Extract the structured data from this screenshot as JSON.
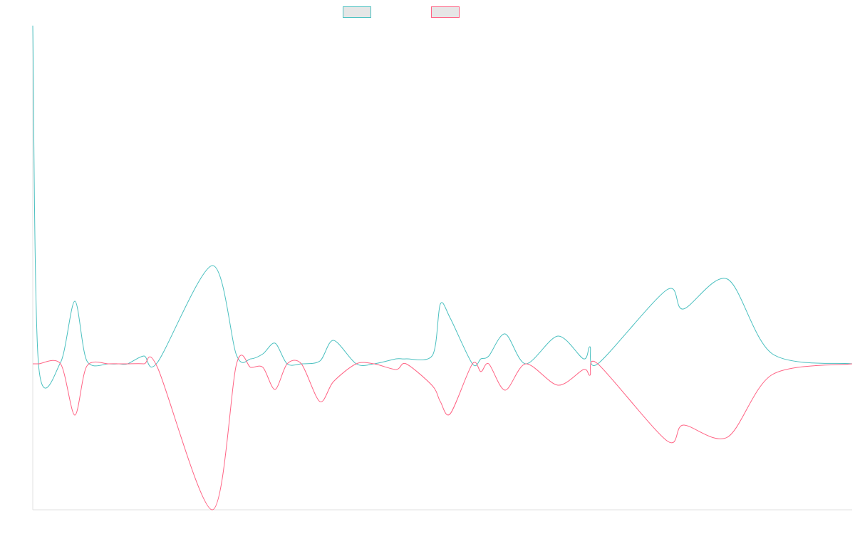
{
  "chart_data": {
    "type": "line",
    "title": "",
    "xlabel": "",
    "ylabel": "",
    "grid": false,
    "legend": "top-center",
    "colors": {
      "series_a": "#4bc0c0",
      "series_b": "#ff6384",
      "legend_fill": "#e6e6e6",
      "axis": "#e0e0e0"
    },
    "ylim": [
      -205,
      475
    ],
    "x": [
      0,
      8,
      39,
      59,
      76,
      107,
      121,
      133,
      156,
      175,
      252,
      286,
      306,
      323,
      340,
      357,
      377,
      403,
      422,
      454,
      479,
      510,
      524,
      561,
      572,
      586,
      617,
      629,
      640,
      663,
      692,
      737,
      773,
      782,
      793,
      890,
      913,
      975,
      1038,
      1150
    ],
    "series": [
      {
        "name": "",
        "values": [
          475,
          0,
          2,
          88,
          4,
          0,
          0,
          0,
          11,
          2,
          138,
          12,
          7,
          14,
          29,
          0,
          0,
          4,
          33,
          0,
          0,
          7,
          7,
          12,
          84,
          64,
          0,
          7,
          11,
          42,
          0,
          39,
          7,
          24,
          0,
          104,
          77,
          119,
          14,
          0
        ]
      },
      {
        "name": "",
        "values": [
          0,
          0,
          0,
          -72,
          -3,
          0,
          0,
          0,
          0,
          -5,
          -205,
          0,
          -5,
          -5,
          -36,
          0,
          0,
          -53,
          -25,
          0,
          0,
          -8,
          0,
          -31,
          -53,
          -70,
          0,
          -11,
          0,
          -37,
          0,
          -30,
          -8,
          -16,
          0,
          -108,
          -86,
          -103,
          -15,
          0
        ]
      }
    ]
  }
}
